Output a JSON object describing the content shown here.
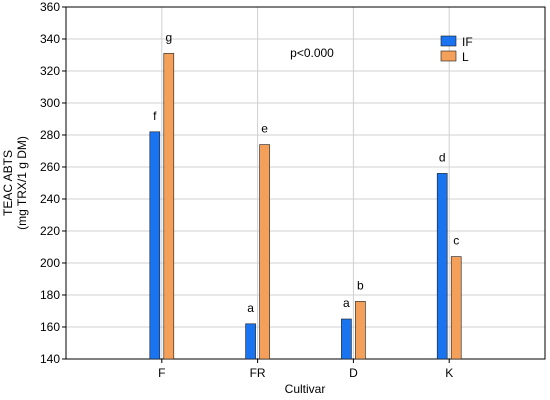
{
  "chart_data": {
    "type": "bar",
    "categories": [
      "F",
      "FR",
      "D",
      "K"
    ],
    "series": [
      {
        "name": "IF",
        "color": "#1a74f0",
        "values": [
          282,
          162,
          165,
          256
        ],
        "labels": [
          "f",
          "a",
          "a",
          "d"
        ]
      },
      {
        "name": "L",
        "color": "#f4a05a",
        "values": [
          331,
          274,
          176,
          204
        ],
        "labels": [
          "g",
          "e",
          "b",
          "c"
        ]
      }
    ],
    "xlabel": "Cultivar",
    "ylabel_line1": "TEAC ABTS",
    "ylabel_line2": "(mg TRX/1 g DM)",
    "ylim": [
      140,
      360
    ],
    "yticks": [
      "140",
      "160",
      "180",
      "200",
      "220",
      "240",
      "260",
      "280",
      "300",
      "320",
      "340",
      "360"
    ],
    "annotation": "p<0.000",
    "grid": true,
    "legend_position": "top-right"
  }
}
